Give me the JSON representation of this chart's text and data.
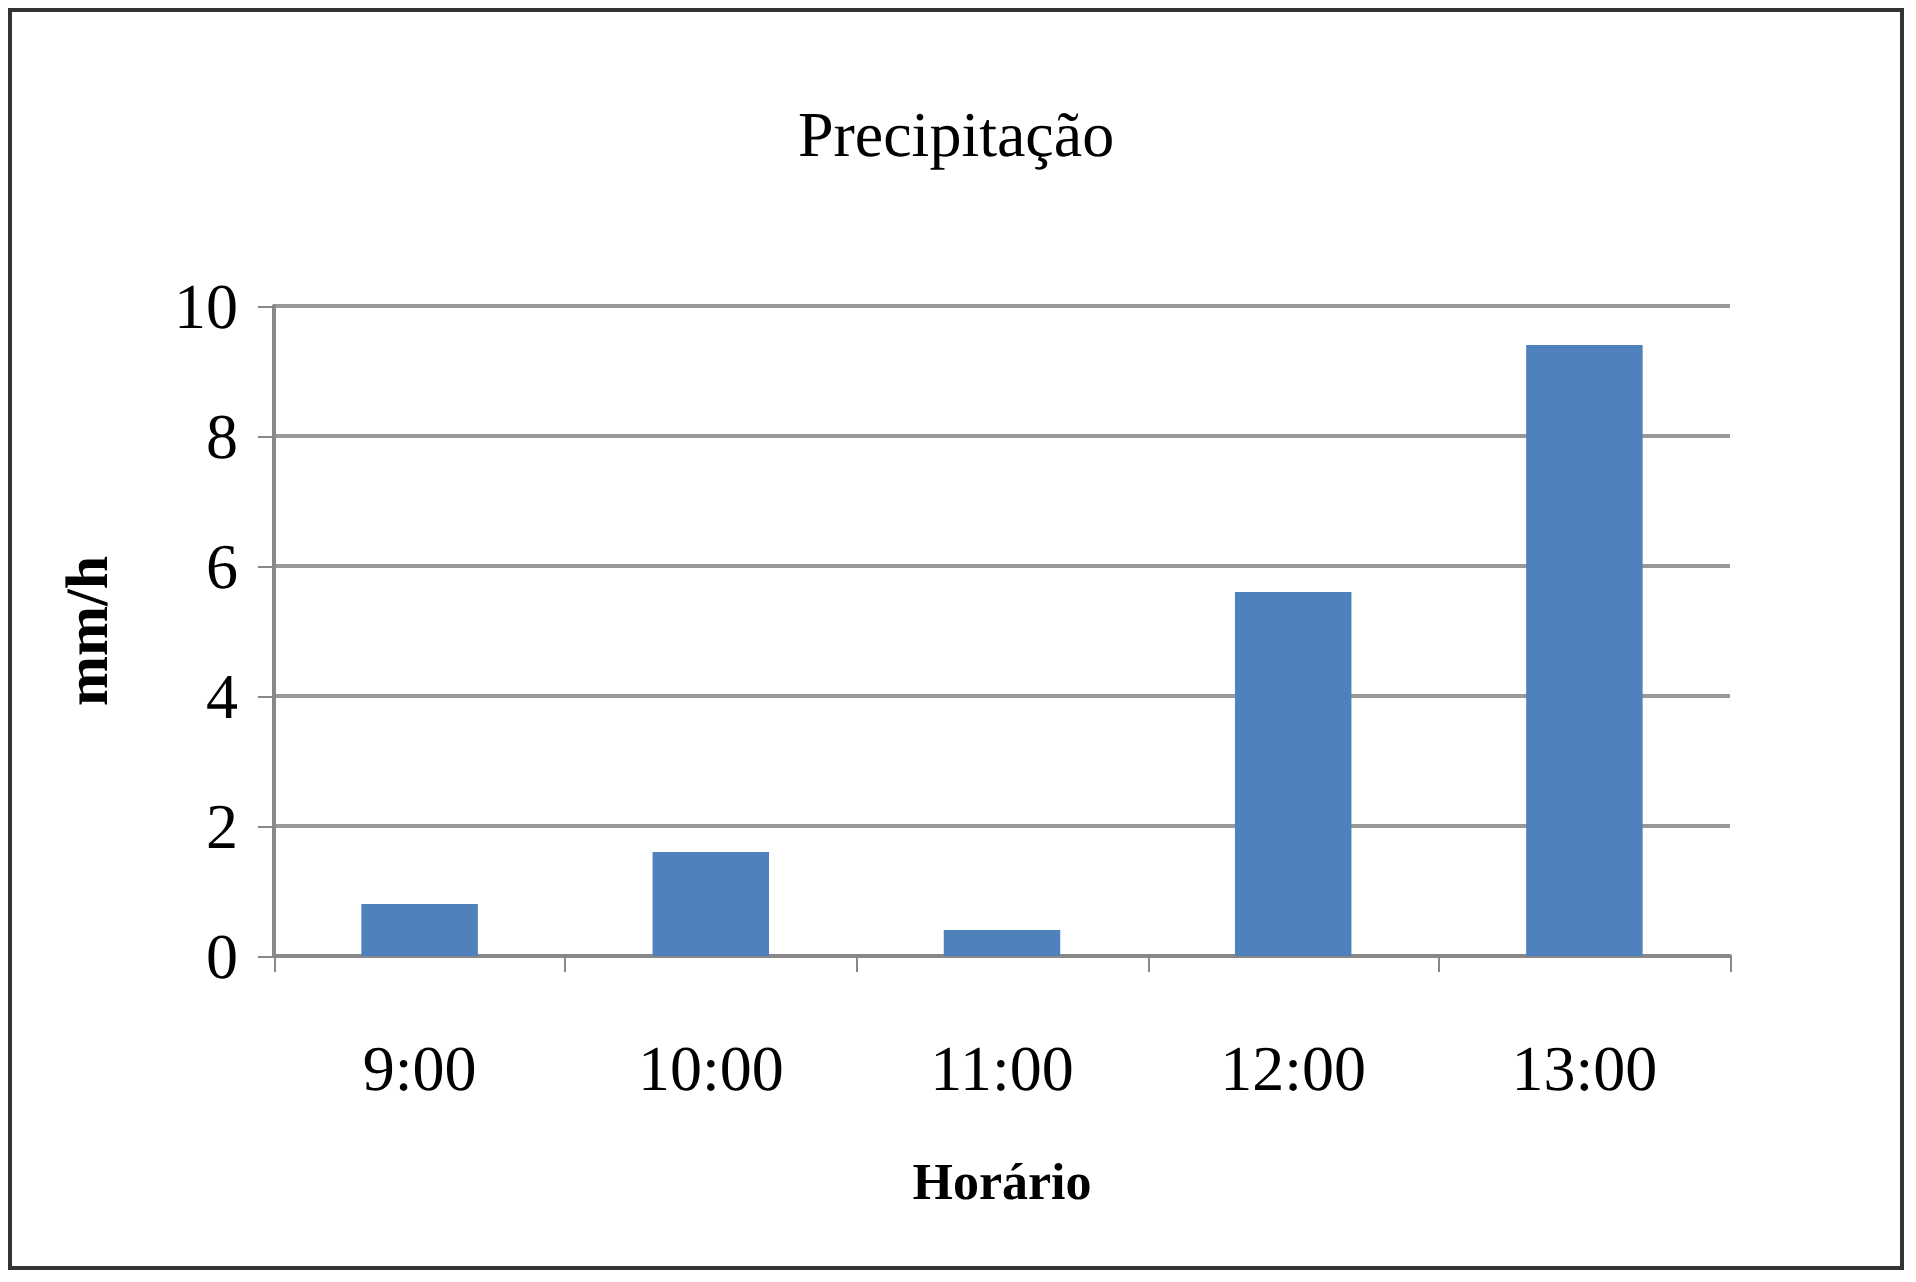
{
  "chart_data": {
    "type": "bar",
    "title": "Precipitação",
    "xlabel": "Horário",
    "ylabel": "mm/h",
    "categories": [
      "9:00",
      "10:00",
      "11:00",
      "12:00",
      "13:00"
    ],
    "values": [
      0.8,
      1.6,
      0.4,
      5.6,
      9.4
    ],
    "color": "#4f81bd",
    "ylim": [
      0,
      10
    ],
    "yticks": [
      0,
      2,
      4,
      6,
      8,
      10
    ],
    "grid": "y"
  }
}
